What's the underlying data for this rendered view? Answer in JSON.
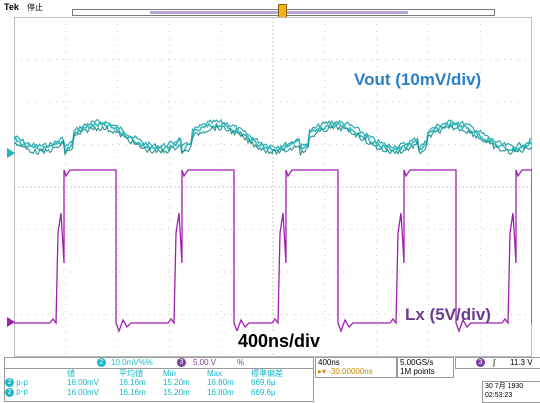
{
  "header": {
    "logo": "Tek",
    "status": "停止",
    "trigger_marker": "T"
  },
  "annotations": {
    "vout_label": "Vout (10mV/div)",
    "lx_label": "Lx (5V/div)",
    "timebase_label": "400ns/div"
  },
  "channels": {
    "ch2": {
      "badge": "2",
      "scale": "10.0mV%%"
    },
    "ch3": {
      "badge": "3",
      "scale": "5.00 V",
      "suffix": "%"
    }
  },
  "measurements": {
    "headers": [
      "",
      "値",
      "平均値",
      "Min",
      "Max",
      "標準偏差"
    ],
    "rows": [
      {
        "ch": "2",
        "name": "p-p",
        "value": "16.00mV",
        "mean": "16.16m",
        "min": "15.20m",
        "max": "16.80m",
        "std": "669.6µ"
      },
      {
        "ch": "2",
        "name": "p-p",
        "value": "16.00mV",
        "mean": "16.16m",
        "min": "15.20m",
        "max": "16.80m",
        "std": "669.6µ"
      }
    ]
  },
  "horizontal": {
    "scale": "400ns",
    "position": "-30.00000ns"
  },
  "acquisition": {
    "rate": "5.00GS/s",
    "points": "1M points"
  },
  "trigger": {
    "source_badge": "3",
    "slope": "∫",
    "level": "11.3 V"
  },
  "datetime": {
    "date": "30 7月  1930",
    "time": "02:53:23"
  },
  "colors": {
    "ch2_trace": "#1fb5b5",
    "ch3_trace": "#a11fb0",
    "vout_label": "#2a7fc6",
    "lx_label": "#6e3c8e",
    "trigger_marker": "#f2b21e"
  }
}
